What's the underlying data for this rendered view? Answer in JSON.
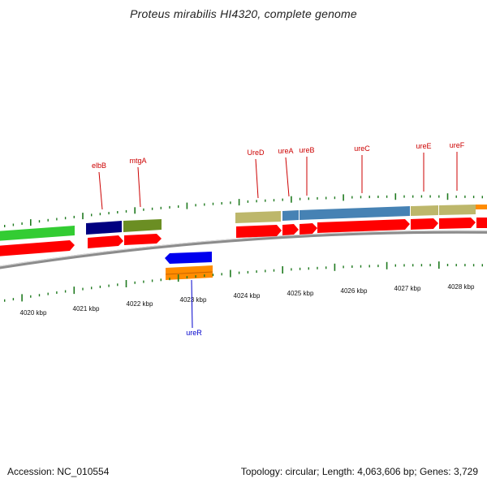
{
  "title": "Proteus mirabilis HI4320, complete genome",
  "footer": {
    "accession": "Accession: NC_010554",
    "summary": "Topology: circular; Length: 4,063,606 bp; Genes: 3,729"
  },
  "colors": {
    "backbone": "#8c8c8c",
    "tick": "#1f7a1f",
    "gene_label": "#cc0000",
    "reverse_label": "#0000cc",
    "cds": "#ff0000"
  },
  "scale_labels": [
    "4020 kbp",
    "4021 kbp",
    "4022 kbp",
    "4023 kbp",
    "4024 kbp",
    "4025 kbp",
    "4026 kbp",
    "4027 kbp",
    "4028 kbp"
  ],
  "gene_labels_forward": [
    "elbB",
    "mtgA",
    "UreD",
    "ureA",
    "ureB",
    "ureC",
    "ureE",
    "ureF"
  ],
  "gene_labels_reverse": [
    "ureR"
  ]
}
